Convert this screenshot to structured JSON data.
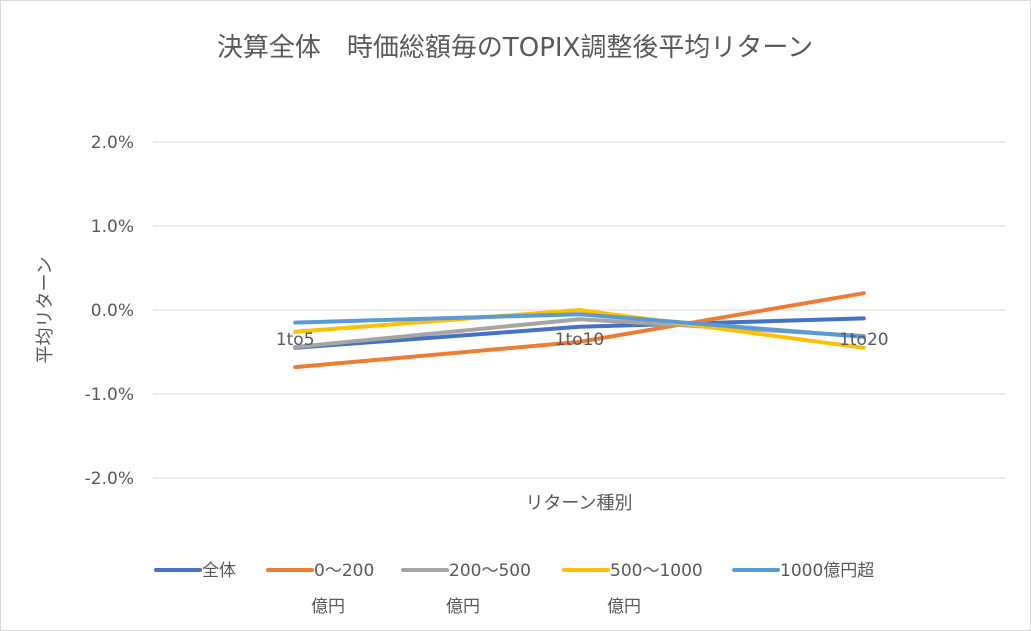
{
  "chart_data": {
    "type": "line",
    "title": "決算全体　時価総額毎のTOPIX調整後平均リターン",
    "xlabel": "リターン種別",
    "ylabel": "平均リターン",
    "categories": [
      "1to5",
      "1to10",
      "1to20"
    ],
    "ylim": [
      -2.0,
      2.0
    ],
    "yticks": [
      2.0,
      1.0,
      0.0,
      -1.0,
      -2.0
    ],
    "ytick_labels": [
      "2.0%",
      "1.0%",
      "0.0%",
      "-1.0%",
      "-2.0%"
    ],
    "grid": true,
    "legend_position": "bottom",
    "series": [
      {
        "name": "全体",
        "name_lines": [
          "全体"
        ],
        "color": "#4472C4",
        "values": [
          -0.45,
          -0.2,
          -0.1
        ]
      },
      {
        "name": "0〜200億円",
        "name_lines": [
          "0〜200",
          "億円"
        ],
        "color": "#ED7D31",
        "values": [
          -0.68,
          -0.38,
          0.2
        ]
      },
      {
        "name": "200〜500億円",
        "name_lines": [
          "200〜500",
          "億円"
        ],
        "color": "#A5A5A5",
        "values": [
          -0.44,
          -0.11,
          -0.31
        ]
      },
      {
        "name": "500〜1000億円",
        "name_lines": [
          "500〜1000",
          "億円"
        ],
        "color": "#FFC000",
        "values": [
          -0.26,
          0.0,
          -0.45
        ]
      },
      {
        "name": "1000億円超",
        "name_lines": [
          "1000億円超"
        ],
        "color": "#5B9BD5",
        "values": [
          -0.15,
          -0.05,
          -0.32
        ]
      }
    ]
  }
}
